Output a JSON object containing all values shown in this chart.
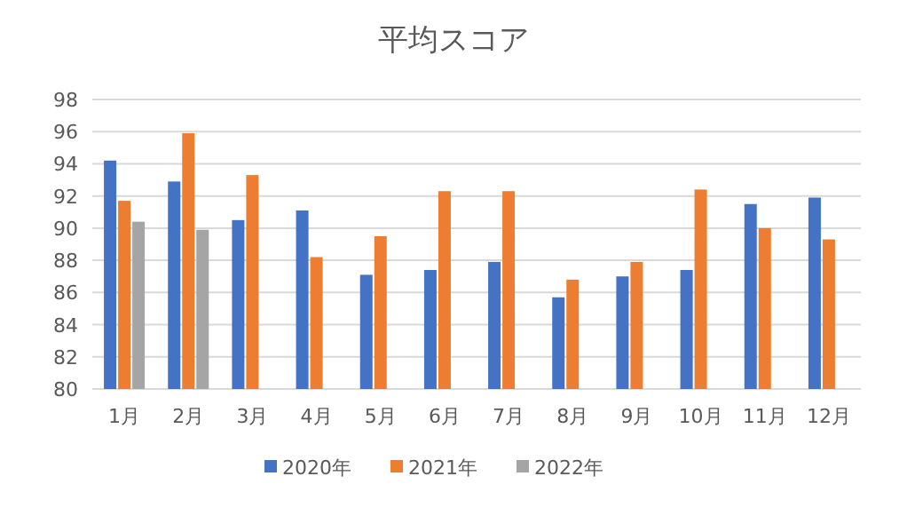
{
  "chart_data": {
    "type": "bar",
    "title": "平均スコア",
    "categories": [
      "1月",
      "2月",
      "3月",
      "4月",
      "5月",
      "6月",
      "7月",
      "8月",
      "9月",
      "10月",
      "11月",
      "12月"
    ],
    "series": [
      {
        "name": "2020年",
        "color": "#4472c4",
        "values": [
          94.2,
          92.9,
          90.5,
          91.1,
          87.1,
          87.4,
          87.9,
          85.7,
          87.0,
          87.4,
          91.5,
          91.9
        ]
      },
      {
        "name": "2021年",
        "color": "#ed7d31",
        "values": [
          91.7,
          95.9,
          93.3,
          88.2,
          89.5,
          92.3,
          92.3,
          86.8,
          87.9,
          92.4,
          90.0,
          89.3
        ]
      },
      {
        "name": "2022年",
        "color": "#a5a5a5",
        "values": [
          90.4,
          89.9,
          null,
          null,
          null,
          null,
          null,
          null,
          null,
          null,
          null,
          null
        ]
      }
    ],
    "ylim": [
      80,
      98
    ],
    "yticks": [
      80,
      82,
      84,
      86,
      88,
      90,
      92,
      94,
      96,
      98
    ],
    "grid": "y",
    "legend": "bottom"
  }
}
